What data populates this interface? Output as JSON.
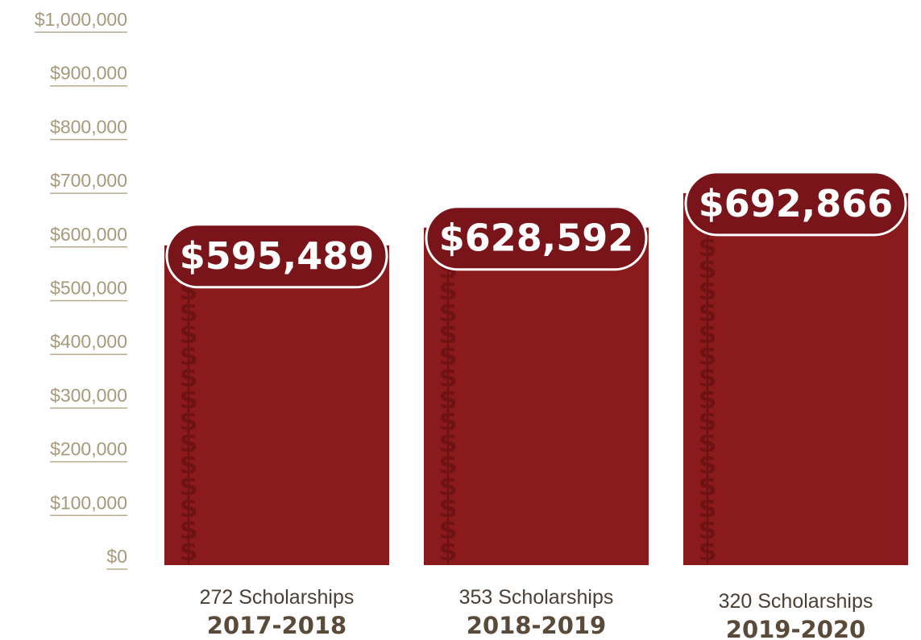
{
  "chart_data": {
    "type": "bar",
    "title": "",
    "xlabel": "",
    "ylabel": "",
    "ylim": [
      0,
      1000000
    ],
    "yticks": [
      0,
      100000,
      200000,
      300000,
      400000,
      500000,
      600000,
      700000,
      800000,
      900000,
      1000000
    ],
    "ytick_labels": [
      "$0",
      "$100,000",
      "$200,000",
      "$300,000",
      "$400,000",
      "$500,000",
      "$600,000",
      "$700,000",
      "$800,000",
      "$900,000",
      "$1,000,000"
    ],
    "grid": false,
    "categories": [
      "2017-2018",
      "2018-2019",
      "2019-2020"
    ],
    "sublabels": [
      "272 Scholarships",
      "353 Scholarships",
      "320 Scholarships"
    ],
    "scholarship_counts": [
      272,
      353,
      320
    ],
    "values": [
      595489,
      628592,
      692866
    ],
    "data_labels": [
      "$595,489",
      "$628,592",
      "$692,866"
    ],
    "decoration_glyph": "$",
    "colors": {
      "bar": "#8b1a1c",
      "label_pill": "#79151a",
      "decoration": "#6f1214",
      "tick_text": "#a69a7c",
      "category_text": "#5a4a3a"
    }
  }
}
